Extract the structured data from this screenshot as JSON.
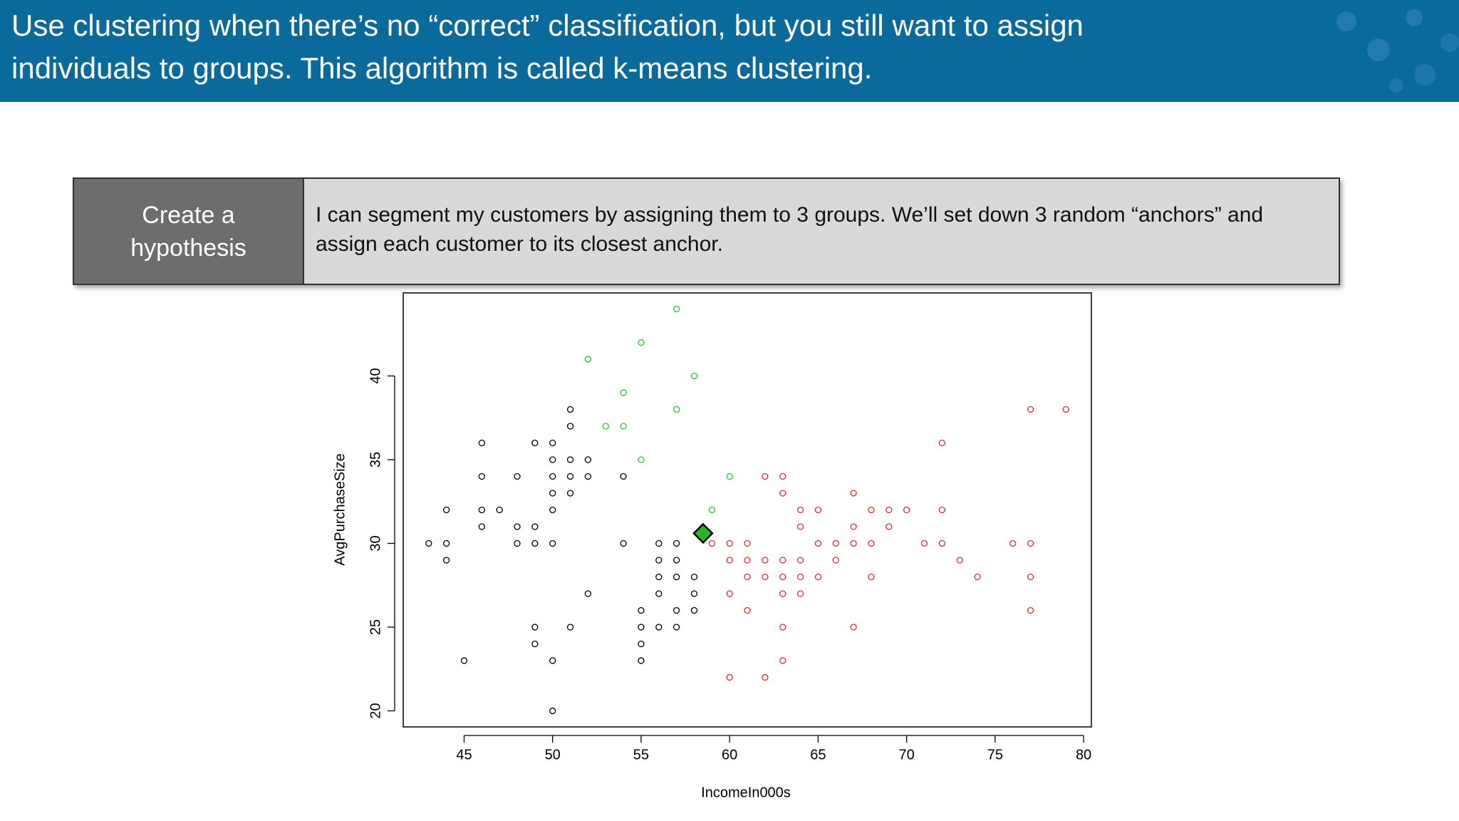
{
  "header": {
    "title_lines": [
      "Use clustering when there’s no “correct” classification, but you still want to assign",
      "individuals to groups. This algorithm is called k-means clustering."
    ]
  },
  "hypothesis": {
    "label": "Create a hypothesis",
    "text_lines": [
      "I can segment my customers by assigning them to 3 groups. We’ll set down 3 random “anchors” and",
      "assign each customer to its closest anchor."
    ]
  },
  "chart_data": {
    "type": "scatter",
    "x_label": "IncomeIn000s",
    "y_label": "AvgPurchaseSize",
    "xlim": [
      41.56,
      80.44
    ],
    "ylim": [
      19.04,
      44.96
    ],
    "xticks": [
      45,
      50,
      55,
      60,
      65,
      70,
      75,
      80
    ],
    "yticks": [
      20,
      25,
      30,
      35,
      40
    ],
    "series": [
      {
        "color": "#000000",
        "marker": "circle",
        "x": [
          43,
          44,
          44,
          44,
          45,
          46,
          46,
          46,
          46,
          47,
          48,
          48,
          48,
          49,
          49,
          49,
          49,
          49,
          50,
          50,
          50,
          50,
          50,
          50,
          50,
          50,
          51,
          51,
          51,
          51,
          51,
          51,
          52,
          52,
          52,
          54,
          54,
          55,
          55,
          55,
          55,
          56,
          56,
          56,
          56,
          56,
          57,
          57,
          57,
          57,
          57,
          58,
          58,
          58
        ],
        "y": [
          30,
          30,
          32,
          29,
          23,
          36,
          34,
          32,
          31,
          32,
          34,
          31,
          30,
          36,
          31,
          30,
          25,
          24,
          36,
          35,
          34,
          33,
          32,
          30,
          23,
          20,
          38,
          37,
          35,
          34,
          33,
          25,
          35,
          34,
          27,
          34,
          30,
          26,
          25,
          24,
          23,
          30,
          29,
          28,
          27,
          25,
          30,
          29,
          28,
          26,
          25,
          28,
          27,
          26
        ]
      },
      {
        "color": "#2ec82e",
        "marker": "circle",
        "x": [
          57,
          55,
          52,
          58,
          54,
          57,
          53,
          54,
          55,
          60,
          59
        ],
        "y": [
          44,
          42,
          41,
          40,
          39,
          38,
          37,
          37,
          35,
          34,
          32
        ]
      },
      {
        "color": "#e0302f",
        "marker": "circle",
        "x": [
          77,
          79,
          72,
          62,
          63,
          63,
          67,
          64,
          65,
          68,
          69,
          70,
          72,
          64,
          67,
          69,
          59,
          60,
          61,
          65,
          66,
          67,
          68,
          71,
          72,
          76,
          77,
          60,
          61,
          62,
          63,
          64,
          66,
          73,
          61,
          62,
          63,
          64,
          65,
          68,
          74,
          77,
          60,
          63,
          64,
          61,
          77,
          63,
          67,
          63,
          60,
          62
        ],
        "y": [
          38,
          38,
          36,
          34,
          34,
          33,
          33,
          32,
          32,
          32,
          32,
          32,
          32,
          31,
          31,
          31,
          30,
          30,
          30,
          30,
          30,
          30,
          30,
          30,
          30,
          30,
          30,
          29,
          29,
          29,
          29,
          29,
          29,
          29,
          28,
          28,
          28,
          28,
          28,
          28,
          28,
          28,
          27,
          27,
          27,
          26,
          26,
          25,
          25,
          23,
          22,
          22
        ]
      },
      {
        "color": "#22b822",
        "marker": "diamond",
        "x": [
          58.5
        ],
        "y": [
          30.6
        ]
      }
    ]
  }
}
